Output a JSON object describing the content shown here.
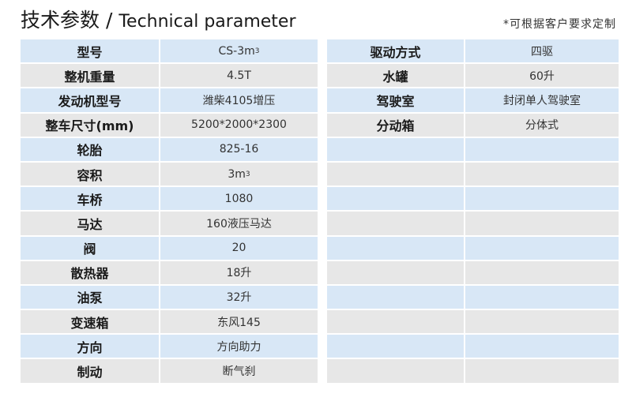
{
  "header": {
    "title_cn": "技术参数 / ",
    "title_en": "Technical parameter",
    "note": "*可根据客户要求定制"
  },
  "left_table": [
    {
      "label": "型号",
      "value": "CS-3m",
      "sup": "3"
    },
    {
      "label": "整机重量",
      "value": "4.5T"
    },
    {
      "label": "发动机型号",
      "value": "潍柴4105增压"
    },
    {
      "label": "整车尺寸(mm)",
      "value": "5200*2000*2300"
    },
    {
      "label": "轮胎",
      "value": "825-16"
    },
    {
      "label": "容积",
      "value": "3m",
      "sup": "3"
    },
    {
      "label": "车桥",
      "value": "1080"
    },
    {
      "label": "马达",
      "value": "160液压马达"
    },
    {
      "label": "阀",
      "value": "20"
    },
    {
      "label": "散热器",
      "value": "18升"
    },
    {
      "label": "油泵",
      "value": "32升"
    },
    {
      "label": "变速箱",
      "value": "东风145"
    },
    {
      "label": "方向",
      "value": "方向助力"
    },
    {
      "label": "制动",
      "value": "断气刹"
    }
  ],
  "right_table": [
    {
      "label": "驱动方式",
      "value": "四驱"
    },
    {
      "label": "水罐",
      "value": "60升"
    },
    {
      "label": "驾驶室",
      "value": "封闭单人驾驶室"
    },
    {
      "label": "分动箱",
      "value": "分体式"
    },
    {
      "label": "",
      "value": ""
    },
    {
      "label": "",
      "value": ""
    },
    {
      "label": "",
      "value": ""
    },
    {
      "label": "",
      "value": ""
    },
    {
      "label": "",
      "value": ""
    },
    {
      "label": "",
      "value": ""
    },
    {
      "label": "",
      "value": ""
    },
    {
      "label": "",
      "value": ""
    },
    {
      "label": "",
      "value": ""
    },
    {
      "label": "",
      "value": ""
    }
  ],
  "colors": {
    "row_blue": "#d8e7f6",
    "row_gray": "#e7e7e7"
  }
}
